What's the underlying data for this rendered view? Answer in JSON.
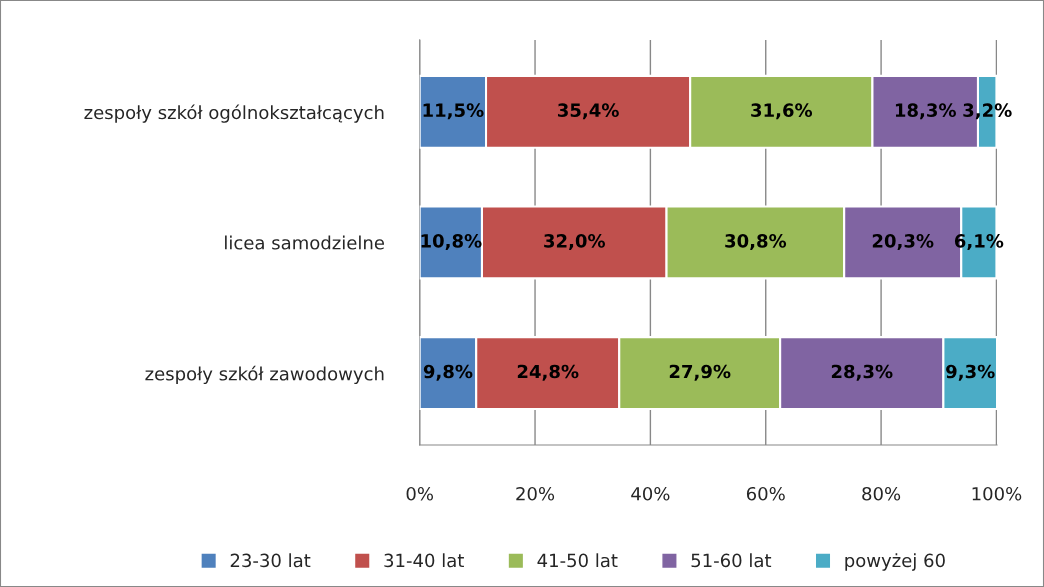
{
  "chart_data": {
    "type": "bar",
    "orientation": "horizontal",
    "stacked": true,
    "categories": [
      "zespoły szkół ogólnokształcących",
      "licea samodzielne",
      "zespoły szkół zawodowych"
    ],
    "series": [
      {
        "name": "23-30 lat",
        "color": "#4f81bd",
        "values": [
          11.5,
          10.8,
          9.8
        ],
        "value_labels": [
          "11,5%",
          "10,8%",
          "9,8%"
        ]
      },
      {
        "name": "31-40 lat",
        "color": "#c0504d",
        "values": [
          35.4,
          32.0,
          24.8
        ],
        "value_labels": [
          "35,4%",
          "32,0%",
          "24,8%"
        ]
      },
      {
        "name": "41-50 lat",
        "color": "#9bbb59",
        "values": [
          31.6,
          30.8,
          27.9
        ],
        "value_labels": [
          "31,6%",
          "30,8%",
          "27,9%"
        ]
      },
      {
        "name": "51-60 lat",
        "color": "#8064a2",
        "values": [
          18.3,
          20.3,
          28.3
        ],
        "value_labels": [
          "18,3%",
          "20,3%",
          "28,3%"
        ]
      },
      {
        "name": "powyżej 60",
        "color": "#4bacc6",
        "values": [
          3.2,
          6.1,
          9.3
        ],
        "value_labels": [
          "3,2%",
          "6,1%",
          "9,3%"
        ]
      }
    ],
    "xlim": [
      0,
      100.1
    ],
    "xticks": [
      {
        "value": 0,
        "label": "0%"
      },
      {
        "value": 20,
        "label": "20%"
      },
      {
        "value": 40,
        "label": "40%"
      },
      {
        "value": 60,
        "label": "60%"
      },
      {
        "value": 80,
        "label": "80%"
      },
      {
        "value": 100,
        "label": "100%"
      }
    ],
    "grid": "x",
    "legend": "bottom"
  }
}
